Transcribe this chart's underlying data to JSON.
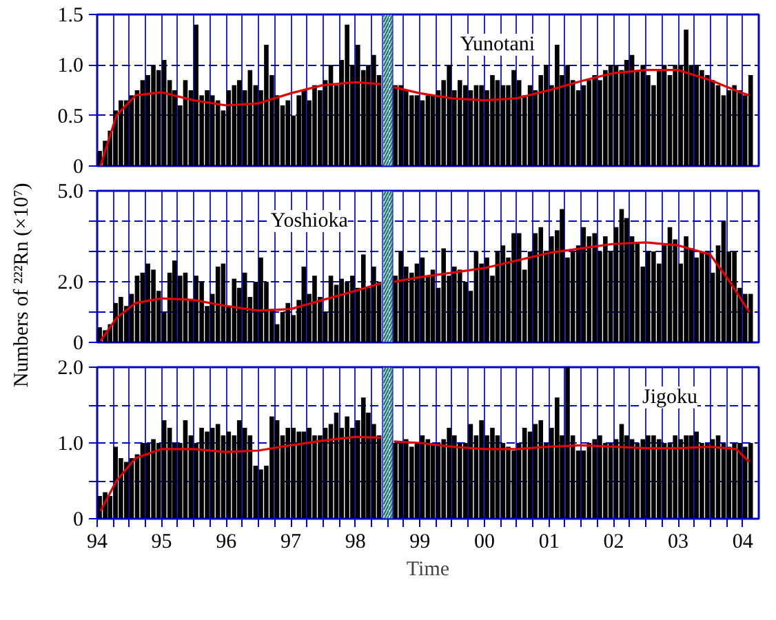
{
  "chart_data": [
    {
      "type": "bar",
      "title": "Yunotani",
      "tick_labels": "y",
      "grid": true,
      "x": [
        "1994-01-15",
        "1994-02-15",
        "1994-03-15",
        "1994-04-15",
        "1994-05-15",
        "1994-06-15",
        "1994-07-15",
        "1994-08-15",
        "1994-09-15",
        "1994-10-15",
        "1994-11-15",
        "1994-12-15",
        "1995-01-15",
        "1995-02-15",
        "1995-03-15",
        "1995-04-15",
        "1995-05-15",
        "1995-06-15",
        "1995-07-15",
        "1995-08-15",
        "1995-09-15",
        "1995-10-15",
        "1995-11-15",
        "1995-12-15",
        "1996-01-15",
        "1996-02-15",
        "1996-03-15",
        "1996-04-15",
        "1996-05-15",
        "1996-06-15",
        "1996-07-15",
        "1996-08-15",
        "1996-09-15",
        "1996-10-15",
        "1996-11-15",
        "1996-12-15",
        "1997-01-15",
        "1997-02-15",
        "1997-03-15",
        "1997-04-15",
        "1997-05-15",
        "1997-06-15",
        "1997-07-15",
        "1997-08-15",
        "1997-09-15",
        "1997-10-15",
        "1997-11-15",
        "1997-12-15",
        "1998-01-15",
        "1998-02-15",
        "1998-03-15",
        "1998-04-15",
        "1998-05-15",
        "1998-06-15",
        "1998-07-15",
        "1998-08-15",
        "1998-09-15",
        "1998-10-15",
        "1998-11-15",
        "1998-12-15",
        "1999-01-15",
        "1999-02-15",
        "1999-03-15",
        "1999-04-15",
        "1999-05-15",
        "1999-06-15",
        "1999-07-15",
        "1999-08-15",
        "1999-09-15",
        "1999-10-15",
        "1999-11-15",
        "1999-12-15",
        "2000-01-15",
        "2000-02-15",
        "2000-03-15",
        "2000-04-15",
        "2000-05-15",
        "2000-06-15",
        "2000-07-15",
        "2000-08-15",
        "2000-09-15",
        "2000-10-15",
        "2000-11-15",
        "2000-12-15",
        "2001-01-15",
        "2001-02-15",
        "2001-03-15",
        "2001-04-15",
        "2001-05-15",
        "2001-06-15",
        "2001-07-15",
        "2001-08-15",
        "2001-09-15",
        "2001-10-15",
        "2001-11-15",
        "2001-12-15",
        "2002-01-15",
        "2002-02-15",
        "2002-03-15",
        "2002-04-15",
        "2002-05-15",
        "2002-06-15",
        "2002-07-15",
        "2002-08-15",
        "2002-09-15",
        "2002-10-15",
        "2002-11-15",
        "2002-12-15",
        "2003-01-15",
        "2003-02-15",
        "2003-03-15",
        "2003-04-15",
        "2003-05-15",
        "2003-06-15",
        "2003-07-15",
        "2003-08-15",
        "2003-09-15",
        "2003-10-15",
        "2003-11-15",
        "2003-12-15",
        "2004-01-15",
        "2004-02-15"
      ],
      "series": [
        {
          "color": "#000000",
          "values": [
            0.15,
            0.25,
            0.35,
            0.55,
            0.65,
            0.65,
            0.7,
            0.75,
            0.85,
            0.9,
            1.0,
            0.95,
            1.05,
            0.85,
            0.75,
            0.6,
            0.85,
            0.75,
            1.4,
            0.7,
            0.75,
            0.7,
            0.65,
            0.55,
            0.75,
            0.8,
            0.85,
            0.75,
            0.95,
            0.8,
            0.75,
            1.2,
            0.9,
            0.7,
            0.6,
            0.65,
            0.5,
            0.7,
            0.75,
            0.65,
            0.8,
            0.75,
            0.85,
            1.0,
            0.8,
            1.05,
            1.4,
            1.0,
            1.2,
            0.95,
            1.0,
            1.1,
            0.9,
            null,
            null,
            0.8,
            0.8,
            0.75,
            0.7,
            0.7,
            0.65,
            0.7,
            0.7,
            0.75,
            0.85,
            1.0,
            0.75,
            0.85,
            0.8,
            0.75,
            0.8,
            0.8,
            0.75,
            0.9,
            0.85,
            0.8,
            0.8,
            0.95,
            0.85,
            0.7,
            0.8,
            0.75,
            0.9,
            1.0,
            0.8,
            1.2,
            0.9,
            1.0,
            0.85,
            0.75,
            0.8,
            0.85,
            0.9,
            0.85,
            0.95,
            1.0,
            1.0,
            0.95,
            1.05,
            1.1,
            0.95,
            1.0,
            0.9,
            0.8,
            0.95,
            1.0,
            0.9,
            1.0,
            1.0,
            1.35,
            1.0,
            1.0,
            0.95,
            0.9,
            0.85,
            0.8,
            0.7,
            0.75,
            0.8,
            0.75,
            0.7,
            0.9
          ]
        },
        {
          "type": "line",
          "color": "#e00000",
          "x": [
            "1994-01-20",
            "1994-04-20",
            "1994-08-07",
            "1995-01-01",
            "1995-07-01",
            "1996-01-01",
            "1996-07-01",
            "1997-01-01",
            "1997-07-01",
            "1998-01-01",
            "1998-05-25",
            "1998-07-01",
            "1998-08-07",
            "1999-01-01",
            "1999-07-01",
            "2000-01-01",
            "2000-07-01",
            "2001-01-01",
            "2001-07-01",
            "2002-01-01",
            "2002-07-01",
            "2003-01-01",
            "2003-07-01",
            "2004-01-01",
            "2004-02-07"
          ],
          "values": [
            0,
            0.5,
            0.7,
            0.73,
            0.65,
            0.6,
            0.62,
            0.72,
            0.8,
            0.83,
            0.81,
            null,
            0.78,
            0.72,
            0.67,
            0.65,
            0.67,
            0.75,
            0.84,
            0.92,
            0.95,
            0.95,
            0.85,
            0.72,
            0.7
          ]
        }
      ],
      "bands": [
        {
          "axis": "x",
          "from": "1998-06-03",
          "to": "1998-07-31",
          "color": "#99dddd"
        }
      ],
      "xlim": [
        "1994-01-01",
        "2004-04-01"
      ],
      "ylim": [
        0,
        1.5
      ],
      "xticks": [
        {
          "value": "1994-01-01",
          "label": null
        },
        {
          "value": "1994-04-01",
          "label": null
        },
        {
          "value": "1994-07-01",
          "label": null
        },
        {
          "value": "1994-10-01",
          "label": null
        },
        {
          "value": "1995-01-01",
          "label": null
        },
        {
          "value": "1995-04-01",
          "label": null
        },
        {
          "value": "1995-07-01",
          "label": null
        },
        {
          "value": "1995-10-01",
          "label": null
        },
        {
          "value": "1996-01-01",
          "label": null
        },
        {
          "value": "1996-04-01",
          "label": null
        },
        {
          "value": "1996-07-01",
          "label": null
        },
        {
          "value": "1996-10-01",
          "label": null
        },
        {
          "value": "1997-01-01",
          "label": null
        },
        {
          "value": "1997-04-01",
          "label": null
        },
        {
          "value": "1997-07-01",
          "label": null
        },
        {
          "value": "1997-10-01",
          "label": null
        },
        {
          "value": "1998-01-01",
          "label": null
        },
        {
          "value": "1998-04-01",
          "label": null
        },
        {
          "value": "1998-07-01",
          "label": null
        },
        {
          "value": "1998-10-01",
          "label": null
        },
        {
          "value": "1999-01-01",
          "label": null
        },
        {
          "value": "1999-04-01",
          "label": null
        },
        {
          "value": "1999-07-01",
          "label": null
        },
        {
          "value": "1999-10-01",
          "label": null
        },
        {
          "value": "2000-01-01",
          "label": null
        },
        {
          "value": "2000-04-01",
          "label": null
        },
        {
          "value": "2000-07-01",
          "label": null
        },
        {
          "value": "2000-10-01",
          "label": null
        },
        {
          "value": "2001-01-01",
          "label": null
        },
        {
          "value": "2001-04-01",
          "label": null
        },
        {
          "value": "2001-07-01",
          "label": null
        },
        {
          "value": "2001-10-01",
          "label": null
        },
        {
          "value": "2002-01-01",
          "label": null
        },
        {
          "value": "2002-04-01",
          "label": null
        },
        {
          "value": "2002-07-01",
          "label": null
        },
        {
          "value": "2002-10-01",
          "label": null
        },
        {
          "value": "2003-01-01",
          "label": null
        },
        {
          "value": "2003-04-01",
          "label": null
        },
        {
          "value": "2003-07-01",
          "label": null
        },
        {
          "value": "2003-10-01",
          "label": null
        },
        {
          "value": "2004-01-01",
          "label": null
        }
      ],
      "yticks": [
        0,
        0.5,
        {
          "value": 1,
          "label": "1.0"
        },
        1.5
      ]
    },
    {
      "type": "bar",
      "title": "Yoshioka",
      "ylabel": "Numbers of ²²²Rn (×10⁷)",
      "tick_labels": "y",
      "grid": true,
      "x": [
        "1994-01-15",
        "1994-02-15",
        "1994-03-15",
        "1994-04-15",
        "1994-05-15",
        "1994-06-15",
        "1994-07-15",
        "1994-08-15",
        "1994-09-15",
        "1994-10-15",
        "1994-11-15",
        "1994-12-15",
        "1995-01-15",
        "1995-02-15",
        "1995-03-15",
        "1995-04-15",
        "1995-05-15",
        "1995-06-15",
        "1995-07-15",
        "1995-08-15",
        "1995-09-15",
        "1995-10-15",
        "1995-11-15",
        "1995-12-15",
        "1996-01-15",
        "1996-02-15",
        "1996-03-15",
        "1996-04-15",
        "1996-05-15",
        "1996-06-15",
        "1996-07-15",
        "1996-08-15",
        "1996-09-15",
        "1996-10-15",
        "1996-11-15",
        "1996-12-15",
        "1997-01-15",
        "1997-02-15",
        "1997-03-15",
        "1997-04-15",
        "1997-05-15",
        "1997-06-15",
        "1997-07-15",
        "1997-08-15",
        "1997-09-15",
        "1997-10-15",
        "1997-11-15",
        "1997-12-15",
        "1998-01-15",
        "1998-02-15",
        "1998-03-15",
        "1998-04-15",
        "1998-05-15",
        "1998-06-15",
        "1998-07-15",
        "1998-08-15",
        "1998-09-15",
        "1998-10-15",
        "1998-11-15",
        "1998-12-15",
        "1999-01-15",
        "1999-02-15",
        "1999-03-15",
        "1999-04-15",
        "1999-05-15",
        "1999-06-15",
        "1999-07-15",
        "1999-08-15",
        "1999-09-15",
        "1999-10-15",
        "1999-11-15",
        "1999-12-15",
        "2000-01-15",
        "2000-02-15",
        "2000-03-15",
        "2000-04-15",
        "2000-05-15",
        "2000-06-15",
        "2000-07-15",
        "2000-08-15",
        "2000-09-15",
        "2000-10-15",
        "2000-11-15",
        "2000-12-15",
        "2001-01-15",
        "2001-02-15",
        "2001-03-15",
        "2001-04-15",
        "2001-05-15",
        "2001-06-15",
        "2001-07-15",
        "2001-08-15",
        "2001-09-15",
        "2001-10-15",
        "2001-11-15",
        "2001-12-15",
        "2002-01-15",
        "2002-02-15",
        "2002-03-15",
        "2002-04-15",
        "2002-05-15",
        "2002-06-15",
        "2002-07-15",
        "2002-08-15",
        "2002-09-15",
        "2002-10-15",
        "2002-11-15",
        "2002-12-15",
        "2003-01-15",
        "2003-02-15",
        "2003-03-15",
        "2003-04-15",
        "2003-05-15",
        "2003-06-15",
        "2003-07-15",
        "2003-08-15",
        "2003-09-15",
        "2003-10-15",
        "2003-11-15",
        "2003-12-15",
        "2004-01-15",
        "2004-02-15"
      ],
      "series": [
        {
          "color": "#000000",
          "values": [
            0.5,
            0.4,
            0.6,
            1.3,
            1.5,
            1.2,
            1.6,
            2.2,
            2.3,
            2.6,
            2.4,
            1.7,
            1.0,
            2.3,
            2.7,
            2.2,
            2.3,
            1.4,
            2.2,
            2.0,
            1.2,
            1.6,
            2.5,
            2.6,
            1.2,
            2.1,
            1.8,
            2.3,
            1.5,
            2.0,
            2.8,
            2.0,
            1.1,
            0.6,
            1.0,
            1.3,
            0.9,
            1.4,
            2.5,
            1.6,
            2.2,
            1.5,
            1.0,
            2.2,
            1.9,
            2.1,
            2.0,
            2.2,
            1.8,
            2.9,
            1.8,
            2.5,
            2.0,
            null,
            null,
            2.2,
            3.0,
            2.5,
            2.3,
            2.6,
            2.8,
            2.2,
            2.4,
            1.8,
            3.1,
            2.2,
            2.5,
            2.4,
            2.0,
            1.7,
            3.0,
            2.6,
            2.8,
            2.2,
            3.0,
            3.2,
            2.8,
            3.6,
            3.6,
            2.4,
            3.0,
            3.6,
            3.8,
            3.0,
            3.5,
            3.7,
            4.4,
            2.8,
            3.0,
            3.2,
            3.8,
            3.5,
            3.6,
            3.0,
            3.5,
            3.0,
            3.8,
            4.4,
            4.1,
            3.5,
            3.3,
            2.5,
            3.0,
            3.0,
            2.6,
            3.2,
            3.8,
            3.4,
            2.6,
            3.5,
            3.1,
            2.8,
            3.0,
            3.0,
            2.3,
            3.2,
            4.0,
            3.0,
            3.0,
            1.8,
            1.6,
            1.6
          ]
        },
        {
          "type": "line",
          "color": "#e00000",
          "x": [
            "1994-01-20",
            "1994-04-20",
            "1994-08-07",
            "1995-01-01",
            "1995-07-01",
            "1996-01-01",
            "1996-07-01",
            "1997-01-01",
            "1997-07-01",
            "1998-01-01",
            "1998-05-25",
            "1998-07-01",
            "1998-08-07",
            "1999-01-01",
            "1999-07-01",
            "2000-01-01",
            "2000-07-01",
            "2001-01-01",
            "2001-07-01",
            "2002-01-01",
            "2002-07-01",
            "2003-01-01",
            "2003-07-01",
            "2003-10-20",
            "2004-02-07"
          ],
          "values": [
            0.05,
            0.8,
            1.3,
            1.45,
            1.4,
            1.2,
            1.05,
            1.1,
            1.4,
            1.7,
            1.95,
            null,
            2.0,
            2.15,
            2.3,
            2.45,
            2.7,
            2.95,
            3.1,
            3.25,
            3.3,
            3.2,
            2.9,
            2.0,
            1.0
          ]
        }
      ],
      "bands": [
        {
          "axis": "x",
          "from": "1998-06-03",
          "to": "1998-07-31",
          "color": "#99dddd"
        }
      ],
      "xlim": [
        "1994-01-01",
        "2004-04-01"
      ],
      "ylim": [
        0,
        5
      ],
      "xticks": [
        {
          "value": "1994-01-01",
          "label": null
        },
        {
          "value": "1994-04-01",
          "label": null
        },
        {
          "value": "1994-07-01",
          "label": null
        },
        {
          "value": "1994-10-01",
          "label": null
        },
        {
          "value": "1995-01-01",
          "label": null
        },
        {
          "value": "1995-04-01",
          "label": null
        },
        {
          "value": "1995-07-01",
          "label": null
        },
        {
          "value": "1995-10-01",
          "label": null
        },
        {
          "value": "1996-01-01",
          "label": null
        },
        {
          "value": "1996-04-01",
          "label": null
        },
        {
          "value": "1996-07-01",
          "label": null
        },
        {
          "value": "1996-10-01",
          "label": null
        },
        {
          "value": "1997-01-01",
          "label": null
        },
        {
          "value": "1997-04-01",
          "label": null
        },
        {
          "value": "1997-07-01",
          "label": null
        },
        {
          "value": "1997-10-01",
          "label": null
        },
        {
          "value": "1998-01-01",
          "label": null
        },
        {
          "value": "1998-04-01",
          "label": null
        },
        {
          "value": "1998-07-01",
          "label": null
        },
        {
          "value": "1998-10-01",
          "label": null
        },
        {
          "value": "1999-01-01",
          "label": null
        },
        {
          "value": "1999-04-01",
          "label": null
        },
        {
          "value": "1999-07-01",
          "label": null
        },
        {
          "value": "1999-10-01",
          "label": null
        },
        {
          "value": "2000-01-01",
          "label": null
        },
        {
          "value": "2000-04-01",
          "label": null
        },
        {
          "value": "2000-07-01",
          "label": null
        },
        {
          "value": "2000-10-01",
          "label": null
        },
        {
          "value": "2001-01-01",
          "label": null
        },
        {
          "value": "2001-04-01",
          "label": null
        },
        {
          "value": "2001-07-01",
          "label": null
        },
        {
          "value": "2001-10-01",
          "label": null
        },
        {
          "value": "2002-01-01",
          "label": null
        },
        {
          "value": "2002-04-01",
          "label": null
        },
        {
          "value": "2002-07-01",
          "label": null
        },
        {
          "value": "2002-10-01",
          "label": null
        },
        {
          "value": "2003-01-01",
          "label": null
        },
        {
          "value": "2003-04-01",
          "label": null
        },
        {
          "value": "2003-07-01",
          "label": null
        },
        {
          "value": "2003-10-01",
          "label": null
        },
        {
          "value": "2004-01-01",
          "label": null
        }
      ],
      "yticks": [
        0,
        {
          "value": 1,
          "label": null
        },
        {
          "value": 2,
          "label": "2.0"
        },
        {
          "value": 3,
          "label": null
        },
        {
          "value": 4,
          "label": null
        },
        {
          "value": 5,
          "label": "5.0"
        }
      ]
    },
    {
      "type": "bar",
      "title": "Jigoku",
      "xlabel": "Time",
      "grid": true,
      "x": [
        "1994-01-15",
        "1994-02-15",
        "1994-03-15",
        "1994-04-15",
        "1994-05-15",
        "1994-06-15",
        "1994-07-15",
        "1994-08-15",
        "1994-09-15",
        "1994-10-15",
        "1994-11-15",
        "1994-12-15",
        "1995-01-15",
        "1995-02-15",
        "1995-03-15",
        "1995-04-15",
        "1995-05-15",
        "1995-06-15",
        "1995-07-15",
        "1995-08-15",
        "1995-09-15",
        "1995-10-15",
        "1995-11-15",
        "1995-12-15",
        "1996-01-15",
        "1996-02-15",
        "1996-03-15",
        "1996-04-15",
        "1996-05-15",
        "1996-06-15",
        "1996-07-15",
        "1996-08-15",
        "1996-09-15",
        "1996-10-15",
        "1996-11-15",
        "1996-12-15",
        "1997-01-15",
        "1997-02-15",
        "1997-03-15",
        "1997-04-15",
        "1997-05-15",
        "1997-06-15",
        "1997-07-15",
        "1997-08-15",
        "1997-09-15",
        "1997-10-15",
        "1997-11-15",
        "1997-12-15",
        "1998-01-15",
        "1998-02-15",
        "1998-03-15",
        "1998-04-15",
        "1998-05-15",
        "1998-06-15",
        "1998-07-15",
        "1998-08-15",
        "1998-09-15",
        "1998-10-15",
        "1998-11-15",
        "1998-12-15",
        "1999-01-15",
        "1999-02-15",
        "1999-03-15",
        "1999-04-15",
        "1999-05-15",
        "1999-06-15",
        "1999-07-15",
        "1999-08-15",
        "1999-09-15",
        "1999-10-15",
        "1999-11-15",
        "1999-12-15",
        "2000-01-15",
        "2000-02-15",
        "2000-03-15",
        "2000-04-15",
        "2000-05-15",
        "2000-06-15",
        "2000-07-15",
        "2000-08-15",
        "2000-09-15",
        "2000-10-15",
        "2000-11-15",
        "2000-12-15",
        "2001-01-15",
        "2001-02-15",
        "2001-03-15",
        "2001-04-15",
        "2001-05-15",
        "2001-06-15",
        "2001-07-15",
        "2001-08-15",
        "2001-09-15",
        "2001-10-15",
        "2001-11-15",
        "2001-12-15",
        "2002-01-15",
        "2002-02-15",
        "2002-03-15",
        "2002-04-15",
        "2002-05-15",
        "2002-06-15",
        "2002-07-15",
        "2002-08-15",
        "2002-09-15",
        "2002-10-15",
        "2002-11-15",
        "2002-12-15",
        "2003-01-15",
        "2003-02-15",
        "2003-03-15",
        "2003-04-15",
        "2003-05-15",
        "2003-06-15",
        "2003-07-15",
        "2003-08-15",
        "2003-09-15",
        "2003-10-15",
        "2003-11-15",
        "2003-12-15",
        "2004-01-15",
        "2004-02-15"
      ],
      "series": [
        {
          "color": "#000000",
          "values": [
            0.3,
            0.35,
            0.3,
            0.95,
            0.8,
            0.75,
            0.8,
            0.85,
            1.0,
            1.0,
            1.05,
            1.0,
            1.3,
            1.2,
            1.0,
            1.0,
            1.3,
            1.1,
            1.0,
            1.2,
            1.15,
            1.2,
            1.25,
            1.1,
            1.15,
            1.1,
            1.3,
            1.2,
            1.1,
            0.7,
            0.65,
            0.7,
            1.35,
            1.3,
            1.1,
            1.2,
            1.2,
            1.15,
            1.15,
            1.2,
            1.1,
            1.1,
            1.2,
            1.25,
            1.4,
            1.2,
            1.35,
            1.2,
            1.3,
            1.6,
            1.4,
            1.25,
            1.1,
            null,
            null,
            1.0,
            1.0,
            1.05,
            0.95,
            1.0,
            1.1,
            1.05,
            1.0,
            1.0,
            1.05,
            1.2,
            1.1,
            1.0,
            1.0,
            1.25,
            1.1,
            1.3,
            1.1,
            1.2,
            1.1,
            1.0,
            0.95,
            0.9,
            1.0,
            1.2,
            1.15,
            1.25,
            1.3,
            1.0,
            1.2,
            1.6,
            1.1,
            2.0,
            1.1,
            0.9,
            0.9,
            1.0,
            1.05,
            1.1,
            1.0,
            1.0,
            1.05,
            1.25,
            1.1,
            1.05,
            1.0,
            1.05,
            1.1,
            1.1,
            1.05,
            1.0,
            1.0,
            1.1,
            1.05,
            1.1,
            1.1,
            1.15,
            1.0,
            1.0,
            1.05,
            1.1,
            1.0,
            0.95,
            1.0,
            1.0,
            0.95,
            1.0
          ]
        },
        {
          "type": "line",
          "color": "#e00000",
          "x": [
            "1994-01-20",
            "1994-04-20",
            "1994-08-07",
            "1995-01-01",
            "1995-07-01",
            "1996-01-01",
            "1996-07-01",
            "1997-01-01",
            "1997-07-01",
            "1998-01-01",
            "1998-05-25",
            "1998-07-01",
            "1998-08-07",
            "1999-01-01",
            "1999-07-01",
            "2000-01-01",
            "2000-07-01",
            "2001-01-01",
            "2001-07-01",
            "2002-01-01",
            "2002-07-01",
            "2003-01-01",
            "2003-07-01",
            "2003-11-25",
            "2004-02-07"
          ],
          "values": [
            0.1,
            0.5,
            0.8,
            0.92,
            0.92,
            0.88,
            0.9,
            0.97,
            1.03,
            1.08,
            1.07,
            null,
            1.02,
            1.0,
            0.95,
            0.92,
            0.92,
            0.95,
            0.97,
            0.95,
            0.93,
            0.93,
            0.95,
            0.92,
            0.75
          ]
        }
      ],
      "bands": [
        {
          "axis": "x",
          "from": "1998-06-03",
          "to": "1998-07-31",
          "color": "#99dddd"
        }
      ],
      "xlim": [
        "1994-01-01",
        "2004-04-01"
      ],
      "ylim": [
        0,
        2
      ],
      "xticks": [
        {
          "value": "1994-01-01",
          "label": "94"
        },
        {
          "value": "1994-04-01",
          "label": null
        },
        {
          "value": "1994-07-01",
          "label": null
        },
        {
          "value": "1994-10-01",
          "label": null
        },
        {
          "value": "1995-01-01",
          "label": "95"
        },
        {
          "value": "1995-04-01",
          "label": null
        },
        {
          "value": "1995-07-01",
          "label": null
        },
        {
          "value": "1995-10-01",
          "label": null
        },
        {
          "value": "1996-01-01",
          "label": "96"
        },
        {
          "value": "1996-04-01",
          "label": null
        },
        {
          "value": "1996-07-01",
          "label": null
        },
        {
          "value": "1996-10-01",
          "label": null
        },
        {
          "value": "1997-01-01",
          "label": "97"
        },
        {
          "value": "1997-04-01",
          "label": null
        },
        {
          "value": "1997-07-01",
          "label": null
        },
        {
          "value": "1997-10-01",
          "label": null
        },
        {
          "value": "1998-01-01",
          "label": "98"
        },
        {
          "value": "1998-04-01",
          "label": null
        },
        {
          "value": "1998-07-01",
          "label": null
        },
        {
          "value": "1998-10-01",
          "label": null
        },
        {
          "value": "1999-01-01",
          "label": "99"
        },
        {
          "value": "1999-04-01",
          "label": null
        },
        {
          "value": "1999-07-01",
          "label": null
        },
        {
          "value": "1999-10-01",
          "label": null
        },
        {
          "value": "2000-01-01",
          "label": "00"
        },
        {
          "value": "2000-04-01",
          "label": null
        },
        {
          "value": "2000-07-01",
          "label": null
        },
        {
          "value": "2000-10-01",
          "label": null
        },
        {
          "value": "2001-01-01",
          "label": "01"
        },
        {
          "value": "2001-04-01",
          "label": null
        },
        {
          "value": "2001-07-01",
          "label": null
        },
        {
          "value": "2001-10-01",
          "label": null
        },
        {
          "value": "2002-01-01",
          "label": "02"
        },
        {
          "value": "2002-04-01",
          "label": null
        },
        {
          "value": "2002-07-01",
          "label": null
        },
        {
          "value": "2002-10-01",
          "label": null
        },
        {
          "value": "2003-01-01",
          "label": "03"
        },
        {
          "value": "2003-04-01",
          "label": null
        },
        {
          "value": "2003-07-01",
          "label": null
        },
        {
          "value": "2003-10-01",
          "label": null
        },
        {
          "value": "2004-01-01",
          "label": "04"
        }
      ],
      "yticks": [
        0,
        {
          "value": 0.5,
          "label": null
        },
        {
          "value": 1,
          "label": "1.0"
        },
        {
          "value": 1.5,
          "label": null
        },
        {
          "value": 2,
          "label": "2.0"
        }
      ]
    }
  ]
}
